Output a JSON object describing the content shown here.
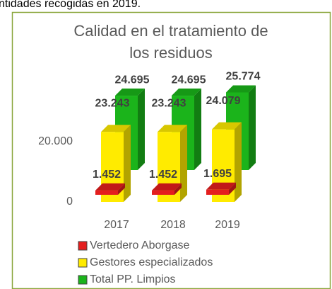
{
  "page_text": "ntidades recogidas en 2019.",
  "chart_data": {
    "type": "bar3d",
    "title": "Calidad en el tratamiento de los residuos",
    "categories": [
      "2017",
      "2018",
      "2019"
    ],
    "series": [
      {
        "name": "Vertedero Aborgase",
        "color": "#e41e1e",
        "values": [
          1452,
          1452,
          1695
        ],
        "value_labels": [
          "1.452",
          "1.452",
          "1.695"
        ]
      },
      {
        "name": "Gestores especializados",
        "color": "#ffeb00",
        "values": [
          23243,
          23243,
          24079
        ],
        "value_labels": [
          "23.243",
          "23.243",
          "24.079"
        ]
      },
      {
        "name": "Total PP. Limpios",
        "color": "#1bb41b",
        "values": [
          24695,
          24695,
          25774
        ],
        "value_labels": [
          "24.695",
          "24.695",
          "25.774"
        ]
      }
    ],
    "ylim": [
      0,
      30000
    ],
    "yticks": [
      0,
      {
        "value": 20000,
        "label": "20.000"
      }
    ],
    "legend": "bottom"
  }
}
